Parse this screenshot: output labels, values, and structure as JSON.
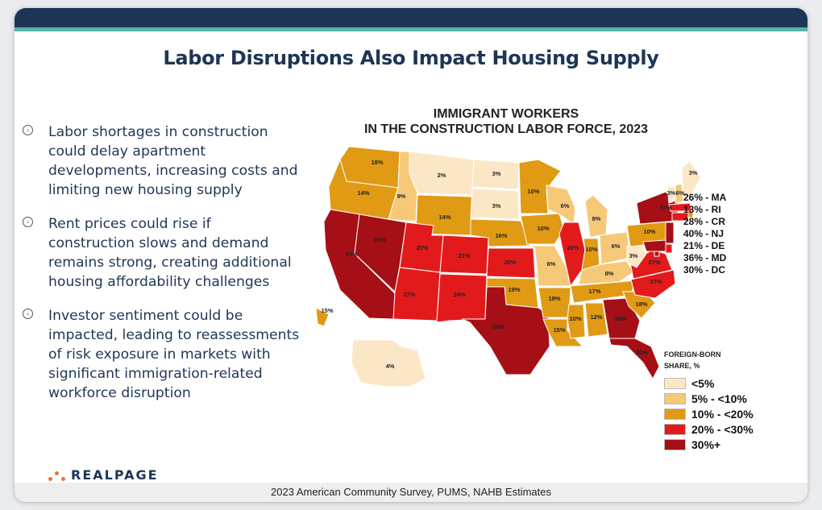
{
  "slide": {
    "title": "Labor Disruptions Also Impact Housing Supply",
    "bullets": [
      "Labor shortages in construction could delay apartment developments, increasing costs and limiting new housing supply",
      "Rent prices could rise if construction slows and demand remains strong, creating additional housing affordability challenges",
      "Investor sentiment could be impacted, leading to reassessments of risk exposure in markets with significant immigration-related workforce disruption"
    ],
    "bullet_icon": "arrow-circle-icon",
    "logo_text": "REALPAGE",
    "footer_source": "2023 American Community Survey, PUMS, NAHB Estimates"
  },
  "map": {
    "title_line1": "IMMIGRANT WORKERS",
    "title_line2": "IN THE CONSTRUCTION LABOR FORCE, 2023",
    "colors": {
      "lt5": "#fbe7c6",
      "5to10": "#f6c978",
      "10to20": "#e09a14",
      "20to30": "#e31a1c",
      "30plus": "#a50f15"
    },
    "states": {
      "WA": {
        "value": "18%",
        "bin": "10to20"
      },
      "OR": {
        "value": "14%",
        "bin": "10to20"
      },
      "CA": {
        "value": "41%",
        "bin": "30plus"
      },
      "NV": {
        "value": "36%",
        "bin": "30plus"
      },
      "ID": {
        "value": "9%",
        "bin": "5to10"
      },
      "MT": {
        "value": "2%",
        "bin": "lt5"
      },
      "WY": {
        "value": "14%",
        "bin": "10to20"
      },
      "UT": {
        "value": "20%",
        "bin": "20to30"
      },
      "AZ": {
        "value": "27%",
        "bin": "20to30"
      },
      "CO": {
        "value": "21%",
        "bin": "20to30"
      },
      "NM": {
        "value": "24%",
        "bin": "20to30"
      },
      "ND": {
        "value": "3%",
        "bin": "lt5"
      },
      "SD": {
        "value": "3%",
        "bin": "lt5"
      },
      "NE": {
        "value": "16%",
        "bin": "10to20"
      },
      "KS": {
        "value": "20%",
        "bin": "20to30"
      },
      "OK": {
        "value": "19%",
        "bin": "10to20"
      },
      "TX": {
        "value": "38%",
        "bin": "30plus"
      },
      "MN": {
        "value": "10%",
        "bin": "10to20"
      },
      "IA": {
        "value": "10%",
        "bin": "10to20"
      },
      "MO": {
        "value": "6%",
        "bin": "5to10"
      },
      "AR": {
        "value": "19%",
        "bin": "10to20"
      },
      "LA": {
        "value": "15%",
        "bin": "10to20"
      },
      "WI": {
        "value": "6%",
        "bin": "5to10"
      },
      "IL": {
        "value": "26%",
        "bin": "20to30"
      },
      "MI": {
        "value": "8%",
        "bin": "5to10"
      },
      "IN": {
        "value": "10%",
        "bin": "10to20"
      },
      "OH": {
        "value": "6%",
        "bin": "5to10"
      },
      "KY": {
        "value": "8%",
        "bin": "5to10"
      },
      "TN": {
        "value": "17%",
        "bin": "10to20"
      },
      "MS": {
        "value": "10%",
        "bin": "10to20"
      },
      "AL": {
        "value": "12%",
        "bin": "10to20"
      },
      "GA": {
        "value": "30%",
        "bin": "30plus"
      },
      "FL": {
        "value": "38%",
        "bin": "30plus"
      },
      "SC": {
        "value": "18%",
        "bin": "10to20"
      },
      "NC": {
        "value": "27%",
        "bin": "20to30"
      },
      "VA": {
        "value": "27%",
        "bin": "20to30"
      },
      "WV": {
        "value": "3%",
        "bin": "lt5"
      },
      "PA": {
        "value": "10%",
        "bin": "10to20"
      },
      "NY": {
        "value": "37%",
        "bin": "30plus"
      },
      "VT": {
        "value": "3%",
        "bin": "lt5"
      },
      "NH": {
        "value": "6%",
        "bin": "5to10"
      },
      "ME": {
        "value": "3%",
        "bin": "lt5"
      },
      "MA": {
        "value": "26%",
        "bin": "20to30"
      },
      "RI": {
        "value": "13%",
        "bin": "10to20"
      },
      "CT": {
        "value": "28%",
        "bin": "20to30"
      },
      "NJ": {
        "value": "40%",
        "bin": "30plus"
      },
      "DE": {
        "value": "21%",
        "bin": "20to30"
      },
      "MD": {
        "value": "36%",
        "bin": "30plus"
      },
      "DC": {
        "value": "30%",
        "bin": "30plus"
      },
      "AK": {
        "value": "4%",
        "bin": "lt5"
      },
      "HI": {
        "value": "15%",
        "bin": "10to20"
      }
    },
    "callouts": [
      "26% - MA",
      "13% - RI",
      "28% - CR",
      "40% - NJ",
      "21% - DE",
      "36% - MD",
      "30% - DC"
    ],
    "legend": {
      "title_line1": "FOREIGN-BORN",
      "title_line2": "SHARE, %",
      "items": [
        {
          "label": "<5%",
          "bin": "lt5"
        },
        {
          "label": "5% - <10%",
          "bin": "5to10"
        },
        {
          "label": "10% - <20%",
          "bin": "10to20"
        },
        {
          "label": "20% - <30%",
          "bin": "20to30"
        },
        {
          "label": "30%+",
          "bin": "30plus"
        }
      ]
    }
  }
}
